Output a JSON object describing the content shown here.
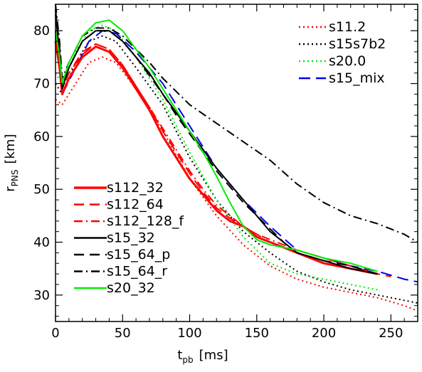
{
  "chart_data": {
    "type": "line",
    "xlabel_main": "t",
    "xlabel_sub": "pb",
    "xlabel_unit": "[ms]",
    "ylabel_main": "r",
    "ylabel_sub": "PNS",
    "ylabel_unit": "[km]",
    "xlim": [
      0,
      270
    ],
    "ylim": [
      25,
      85
    ],
    "xticks": [
      0,
      50,
      100,
      150,
      200,
      250
    ],
    "yticks": [
      30,
      40,
      50,
      60,
      70,
      80
    ],
    "grid": false,
    "legends": [
      {
        "placement": "top-right",
        "entries": [
          "s11.2",
          "s15s7b2",
          "s20.0",
          "s15_mix"
        ]
      },
      {
        "placement": "bottom-left",
        "entries": [
          "s112_32",
          "s112_64",
          "s112_128_f",
          "s15_32",
          "s15_64_p",
          "s15_64_r",
          "s20_32"
        ]
      }
    ],
    "series": [
      {
        "name": "s11.2",
        "color": "#ff0000",
        "style": "dotted",
        "x": [
          0,
          5,
          15,
          25,
          35,
          45,
          60,
          80,
          100,
          120,
          140,
          160,
          180,
          200,
          220,
          240,
          260,
          270
        ],
        "y": [
          67,
          66,
          70,
          74,
          75,
          74,
          69,
          61,
          52,
          45,
          39.5,
          35.5,
          33,
          31.5,
          30.5,
          29.5,
          28,
          27
        ]
      },
      {
        "name": "s15s7b2",
        "color": "#000000",
        "style": "dotted",
        "x": [
          0,
          5,
          15,
          25,
          35,
          45,
          60,
          80,
          100,
          120,
          140,
          160,
          180,
          200,
          220,
          240,
          260,
          270
        ],
        "y": [
          70,
          68,
          74,
          78,
          79,
          78,
          73,
          66,
          56,
          48,
          42,
          38,
          34.5,
          32.5,
          31,
          30,
          29,
          28.5
        ]
      },
      {
        "name": "s20.0",
        "color": "#00ee00",
        "style": "dotted",
        "x": [
          0,
          5,
          15,
          25,
          35,
          45,
          60,
          80,
          100,
          120,
          140,
          160,
          180,
          200,
          220,
          240
        ],
        "y": [
          72,
          70,
          76,
          80,
          81,
          80,
          75,
          67,
          57,
          48,
          41,
          36,
          34,
          33,
          32,
          31
        ]
      },
      {
        "name": "s15_mix",
        "color": "#0000ee",
        "style": "longdash",
        "x": [
          5,
          15,
          25,
          35,
          45,
          60,
          80,
          100,
          120,
          140,
          160,
          180,
          200,
          220,
          240,
          260,
          270
        ],
        "y": [
          68,
          73,
          78,
          80,
          79.5,
          76,
          70,
          62,
          54,
          48,
          43,
          38.5,
          37,
          35.5,
          34.5,
          33,
          32.5
        ]
      },
      {
        "name": "s112_32",
        "color": "#ff0000",
        "style": "solid",
        "width": 3,
        "x": [
          0,
          3,
          5,
          10,
          20,
          30,
          40,
          50,
          60,
          70,
          80,
          90,
          100,
          110,
          120,
          130,
          140,
          150,
          160,
          170,
          180,
          200,
          220,
          240
        ],
        "y": [
          78,
          73,
          68,
          71,
          75,
          77,
          76,
          73,
          69,
          65,
          60,
          56,
          52,
          49,
          46,
          44,
          43,
          41,
          40,
          39,
          38,
          36,
          35,
          34
        ]
      },
      {
        "name": "s112_64",
        "color": "#ff0000",
        "style": "dashed",
        "width": 2,
        "x": [
          0,
          3,
          5,
          10,
          20,
          30,
          40,
          50,
          60,
          70,
          80,
          90,
          100,
          110,
          120,
          130,
          140,
          150,
          160,
          170,
          180,
          200,
          220,
          240,
          250
        ],
        "y": [
          79,
          74,
          69,
          72,
          75.5,
          77.5,
          76.5,
          73.5,
          69.5,
          65.5,
          61,
          57,
          53,
          49.5,
          46.5,
          44.5,
          43,
          41.5,
          40,
          39,
          38.5,
          37,
          35.5,
          34,
          33.5
        ]
      },
      {
        "name": "s112_128_f",
        "color": "#ff0000",
        "style": "dashdot",
        "width": 2,
        "x": [
          0,
          3,
          5,
          10,
          20,
          30,
          40,
          50,
          60,
          70,
          80,
          90,
          100,
          110,
          120,
          130,
          140,
          150,
          160,
          170,
          180,
          200,
          220,
          240
        ],
        "y": [
          80,
          74,
          69,
          72,
          76,
          77.5,
          76.5,
          73.5,
          69.5,
          65.5,
          61.5,
          57.5,
          53.5,
          50,
          47,
          45,
          43,
          41.5,
          40.5,
          39.5,
          38.5,
          37,
          35.5,
          34
        ]
      },
      {
        "name": "s15_32",
        "color": "#000000",
        "style": "solid",
        "width": 2,
        "x": [
          0,
          3,
          5,
          10,
          20,
          30,
          40,
          50,
          60,
          70,
          80,
          90,
          100,
          110,
          120,
          130,
          140,
          150,
          160,
          170,
          180,
          200,
          220,
          240
        ],
        "y": [
          83,
          76,
          69,
          73,
          78,
          80,
          80,
          78,
          75,
          72,
          68,
          64.5,
          61,
          57.5,
          54,
          51,
          48,
          45,
          42,
          40,
          38,
          36.5,
          35,
          34
        ]
      },
      {
        "name": "s15_64_p",
        "color": "#000000",
        "style": "dashed",
        "width": 2,
        "x": [
          0,
          3,
          5,
          10,
          20,
          30,
          40,
          50,
          60,
          70,
          80,
          90,
          100,
          110,
          120,
          130,
          140,
          150,
          160,
          170,
          180,
          200,
          220,
          240
        ],
        "y": [
          84,
          77,
          70,
          73,
          78,
          80,
          80,
          78,
          75,
          71.5,
          68,
          64,
          60.5,
          57,
          53.5,
          50.5,
          47.5,
          45,
          42.5,
          40,
          38,
          36.5,
          35.5,
          34
        ]
      },
      {
        "name": "s15_64_r",
        "color": "#000000",
        "style": "dashdot",
        "width": 2,
        "x": [
          0,
          3,
          5,
          10,
          20,
          30,
          40,
          50,
          60,
          70,
          80,
          90,
          100,
          120,
          140,
          160,
          180,
          200,
          220,
          240,
          260,
          270
        ],
        "y": [
          85,
          78,
          71,
          74,
          79,
          80.5,
          80.5,
          79,
          76.5,
          74,
          71,
          68.5,
          66,
          62.5,
          59,
          55.5,
          51,
          47.5,
          45,
          43.5,
          41.5,
          40
        ]
      },
      {
        "name": "s20_32",
        "color": "#00ee00",
        "style": "solid",
        "width": 2,
        "x": [
          0,
          3,
          5,
          10,
          20,
          30,
          40,
          50,
          60,
          70,
          80,
          90,
          100,
          110,
          120,
          130,
          140,
          150,
          160,
          170,
          180,
          200,
          220,
          240
        ],
        "y": [
          80,
          75,
          70,
          74,
          79,
          81.5,
          82,
          80,
          76.5,
          73,
          69,
          65,
          61,
          57,
          52.5,
          47.5,
          43,
          40.5,
          39.5,
          39,
          38.5,
          37,
          36,
          34.5
        ]
      }
    ]
  }
}
